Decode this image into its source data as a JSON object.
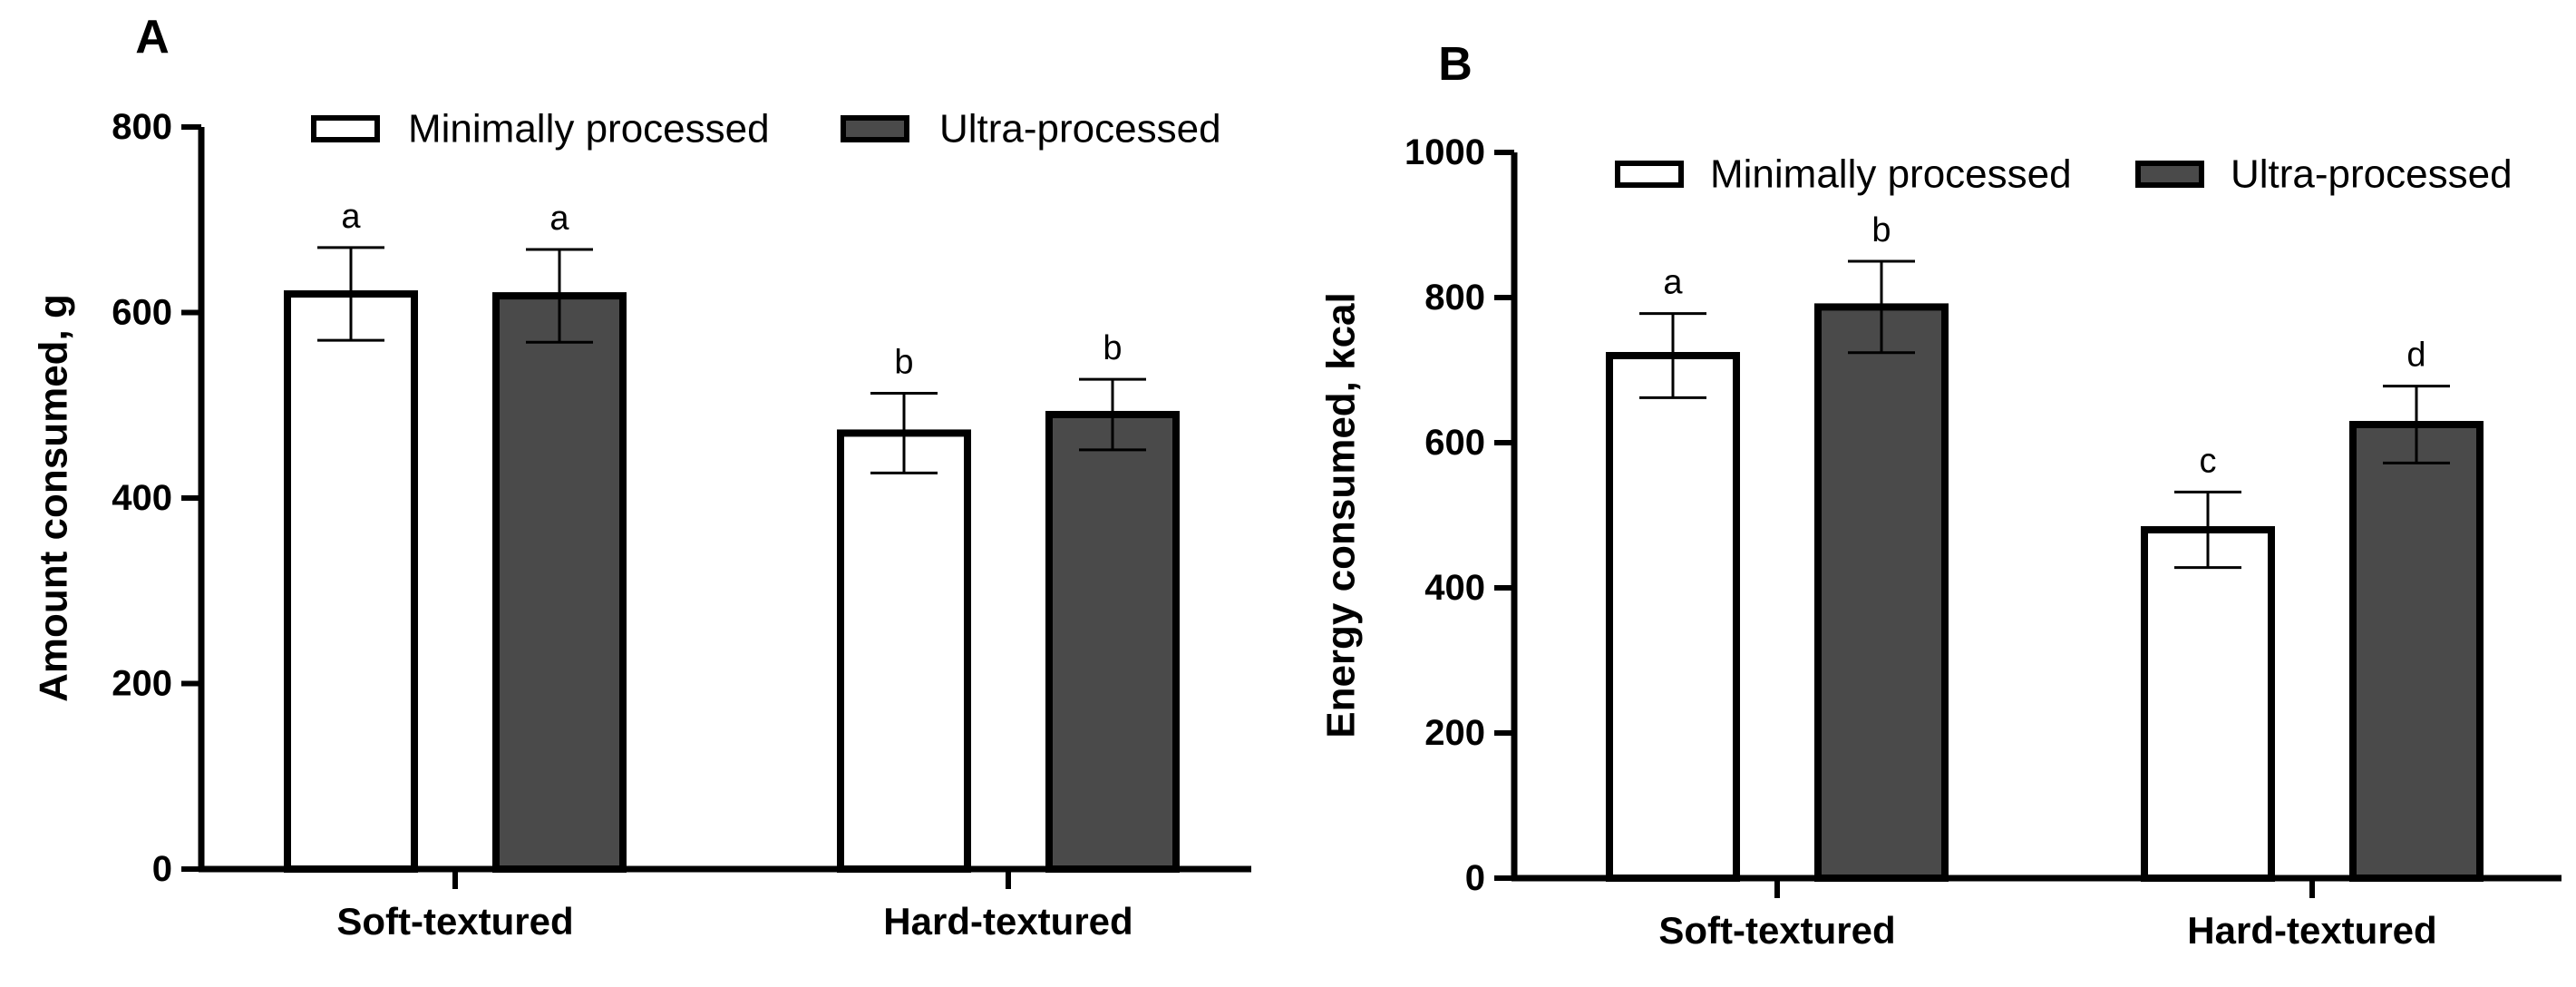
{
  "colors": {
    "minimally": "#ffffff",
    "ultra": "#4a4a4a",
    "stroke": "#000000"
  },
  "chart_data": [
    {
      "panel_label": "A",
      "type": "bar",
      "categories": [
        "Soft-textured",
        "Hard-textured"
      ],
      "series": [
        {
          "name": "Minimally processed",
          "values": [
            620,
            470
          ],
          "errors": [
            50,
            43
          ],
          "letters": [
            "a",
            "b"
          ]
        },
        {
          "name": "Ultra-processed",
          "values": [
            618,
            490
          ],
          "errors": [
            50,
            38
          ],
          "letters": [
            "a",
            "b"
          ]
        }
      ],
      "ylabel": "Amount consumed, g",
      "ylim": [
        0,
        800
      ],
      "yticks": [
        0,
        200,
        400,
        600,
        800
      ],
      "legend": "top",
      "grid": false
    },
    {
      "panel_label": "B",
      "type": "bar",
      "categories": [
        "Soft-textured",
        "Hard-textured"
      ],
      "series": [
        {
          "name": "Minimally processed",
          "values": [
            720,
            480
          ],
          "errors": [
            58,
            52
          ],
          "letters": [
            "a",
            "c"
          ]
        },
        {
          "name": "Ultra-processed",
          "values": [
            787,
            625
          ],
          "errors": [
            63,
            53
          ],
          "letters": [
            "b",
            "d"
          ]
        }
      ],
      "ylabel": "Energy consumed, kcal",
      "ylim": [
        0,
        1000
      ],
      "yticks": [
        0,
        200,
        400,
        600,
        800,
        1000
      ],
      "legend": "top",
      "grid": false
    }
  ]
}
